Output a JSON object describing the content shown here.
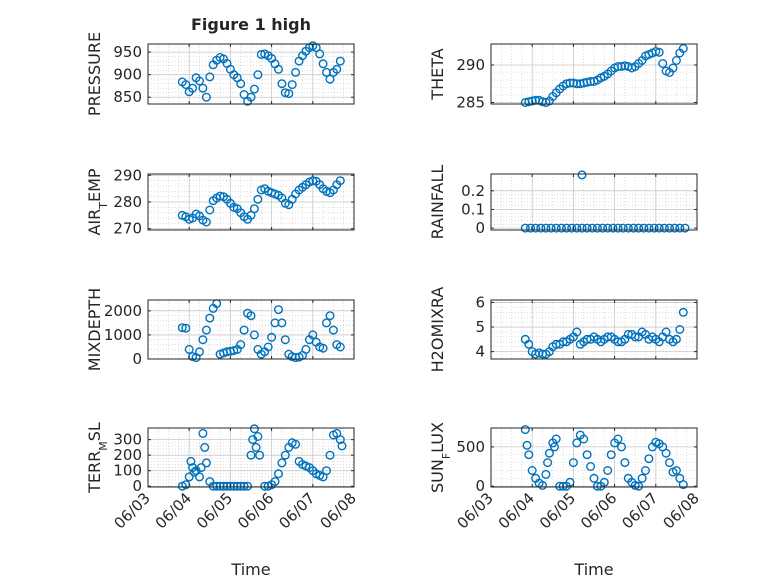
{
  "figure": {
    "title": "Figure 1 high"
  },
  "colors": {
    "marker": "#0072BD",
    "axis": "#262626",
    "grid": "#c8c8c8",
    "background": "#ffffff"
  },
  "chart_data": [
    {
      "type": "scatter",
      "ylabel": "PRESSURE",
      "xlim": [
        "06/03",
        "06/08"
      ],
      "ylim": [
        835,
        968
      ],
      "yticks": [
        850,
        900,
        950
      ],
      "xticklabels": [],
      "xticks": [
        "06/03",
        "06/04",
        "06/05",
        "06/06",
        "06/07",
        "06/08"
      ],
      "grid": true,
      "x": [
        "06/03 20:00",
        "06/03 22:00",
        "06/04 00:00",
        "06/04 02:00",
        "06/04 04:00",
        "06/04 06:00",
        "06/04 08:00",
        "06/04 10:00",
        "06/04 12:00",
        "06/04 14:00",
        "06/04 16:00",
        "06/04 18:00",
        "06/04 20:00",
        "06/04 22:00",
        "06/05 00:00",
        "06/05 02:00",
        "06/05 04:00",
        "06/05 06:00",
        "06/05 08:00",
        "06/05 10:00",
        "06/05 12:00",
        "06/05 14:00",
        "06/05 16:00",
        "06/05 18:00",
        "06/05 20:00",
        "06/05 22:00",
        "06/06 00:00",
        "06/06 02:00",
        "06/06 04:00",
        "06/06 06:00",
        "06/06 08:00",
        "06/06 10:00",
        "06/06 12:00",
        "06/06 14:00",
        "06/06 16:00",
        "06/06 18:00",
        "06/06 20:00",
        "06/06 22:00",
        "06/07 00:00",
        "06/07 02:00",
        "06/07 04:00",
        "06/07 06:00",
        "06/07 08:00",
        "06/07 10:00",
        "06/07 12:00",
        "06/07 14:00",
        "06/07 16:00"
      ],
      "y": [
        884,
        878,
        862,
        870,
        893,
        886,
        870,
        850,
        895,
        922,
        932,
        938,
        935,
        925,
        912,
        900,
        893,
        880,
        856,
        841,
        850,
        868,
        900,
        945,
        946,
        942,
        936,
        924,
        912,
        880,
        860,
        858,
        878,
        905,
        930,
        942,
        952,
        960,
        964,
        960,
        946,
        924,
        905,
        890,
        905,
        912,
        930
      ]
    },
    {
      "type": "scatter",
      "ylabel": "THETA",
      "xlim": [
        "06/03",
        "06/08"
      ],
      "ylim": [
        284.8,
        292.8
      ],
      "yticks": [
        285,
        290
      ],
      "xticklabels": [],
      "xticks": [
        "06/03",
        "06/04",
        "06/05",
        "06/06",
        "06/07",
        "06/08"
      ],
      "grid": true,
      "x": [
        "06/03 20:00",
        "06/03 22:00",
        "06/04 00:00",
        "06/04 02:00",
        "06/04 04:00",
        "06/04 06:00",
        "06/04 08:00",
        "06/04 10:00",
        "06/04 12:00",
        "06/04 14:00",
        "06/04 16:00",
        "06/04 18:00",
        "06/04 20:00",
        "06/04 22:00",
        "06/05 00:00",
        "06/05 02:00",
        "06/05 04:00",
        "06/05 06:00",
        "06/05 08:00",
        "06/05 10:00",
        "06/05 12:00",
        "06/05 14:00",
        "06/05 16:00",
        "06/05 18:00",
        "06/05 20:00",
        "06/05 22:00",
        "06/06 00:00",
        "06/06 02:00",
        "06/06 04:00",
        "06/06 06:00",
        "06/06 08:00",
        "06/06 10:00",
        "06/06 12:00",
        "06/06 14:00",
        "06/06 16:00",
        "06/06 18:00",
        "06/06 20:00",
        "06/06 22:00",
        "06/07 00:00",
        "06/07 02:00",
        "06/07 04:00",
        "06/07 06:00",
        "06/07 08:00",
        "06/07 10:00",
        "06/07 12:00",
        "06/07 14:00",
        "06/07 16:00"
      ],
      "y": [
        285.0,
        285.1,
        285.2,
        285.3,
        285.3,
        285.1,
        285.0,
        285.2,
        285.8,
        286.3,
        286.8,
        287.2,
        287.5,
        287.6,
        287.6,
        287.5,
        287.5,
        287.6,
        287.7,
        287.8,
        287.8,
        288.0,
        288.3,
        288.5,
        288.8,
        289.2,
        289.6,
        289.8,
        289.8,
        289.9,
        289.8,
        289.6,
        289.8,
        290.2,
        290.6,
        291.2,
        291.4,
        291.6,
        291.8,
        291.7,
        290.2,
        289.2,
        289.0,
        289.6,
        290.6,
        291.6,
        292.2
      ]
    },
    {
      "type": "scatter",
      "ylabel": "AIR_TEMP",
      "xlim": [
        "06/03",
        "06/08"
      ],
      "ylim": [
        269.5,
        290.5
      ],
      "yticks": [
        270,
        280,
        290
      ],
      "xticklabels": [],
      "xticks": [
        "06/03",
        "06/04",
        "06/05",
        "06/06",
        "06/07",
        "06/08"
      ],
      "grid": true,
      "x": [
        "06/03 20:00",
        "06/03 22:00",
        "06/04 00:00",
        "06/04 02:00",
        "06/04 04:00",
        "06/04 06:00",
        "06/04 08:00",
        "06/04 10:00",
        "06/04 12:00",
        "06/04 14:00",
        "06/04 16:00",
        "06/04 18:00",
        "06/04 20:00",
        "06/04 22:00",
        "06/05 00:00",
        "06/05 02:00",
        "06/05 04:00",
        "06/05 06:00",
        "06/05 08:00",
        "06/05 10:00",
        "06/05 12:00",
        "06/05 14:00",
        "06/05 16:00",
        "06/05 18:00",
        "06/05 20:00",
        "06/05 22:00",
        "06/06 00:00",
        "06/06 02:00",
        "06/06 04:00",
        "06/06 06:00",
        "06/06 08:00",
        "06/06 10:00",
        "06/06 12:00",
        "06/06 14:00",
        "06/06 16:00",
        "06/06 18:00",
        "06/06 20:00",
        "06/06 22:00",
        "06/07 00:00",
        "06/07 02:00",
        "06/07 04:00",
        "06/07 06:00",
        "06/07 08:00",
        "06/07 10:00",
        "06/07 12:00",
        "06/07 14:00",
        "06/07 16:00"
      ],
      "y": [
        275,
        274.5,
        273.5,
        274,
        275.5,
        274.8,
        273.2,
        272.5,
        277,
        280.5,
        281.5,
        282.2,
        282,
        281,
        279.5,
        278,
        277.5,
        276,
        274.5,
        273.5,
        275,
        277.5,
        281,
        284.5,
        285,
        284,
        283.5,
        283,
        282.5,
        281.5,
        279.5,
        279,
        281,
        283,
        284.5,
        285.5,
        286.5,
        287.5,
        288,
        287.8,
        286.5,
        285,
        284,
        283.5,
        284.5,
        286.5,
        288
      ]
    },
    {
      "type": "scatter",
      "ylabel": "RAINFALL",
      "xlim": [
        "06/03",
        "06/08"
      ],
      "ylim": [
        -0.01,
        0.29
      ],
      "yticks": [
        0,
        0.1,
        0.2
      ],
      "xticklabels": [],
      "xticks": [
        "06/03",
        "06/04",
        "06/05",
        "06/06",
        "06/07",
        "06/08"
      ],
      "grid": true,
      "x": [
        "06/03 20:00",
        "06/03 23:00",
        "06/04 02:00",
        "06/04 05:00",
        "06/04 08:00",
        "06/04 11:00",
        "06/04 14:00",
        "06/04 17:00",
        "06/04 20:00",
        "06/04 23:00",
        "06/05 02:00",
        "06/05 05:00",
        "06/05 08:00",
        "06/05 11:00",
        "06/05 14:00",
        "06/05 17:00",
        "06/05 20:00",
        "06/05 23:00",
        "06/06 02:00",
        "06/06 05:00",
        "06/06 08:00",
        "06/06 11:00",
        "06/06 14:00",
        "06/06 17:00",
        "06/06 20:00",
        "06/06 23:00",
        "06/07 02:00",
        "06/07 05:00",
        "06/07 08:00",
        "06/07 11:00",
        "06/07 14:00",
        "06/07 17:00",
        "06/05 05:00"
      ],
      "y": [
        0,
        0,
        0,
        0,
        0,
        0,
        0,
        0,
        0,
        0,
        0,
        0,
        0,
        0,
        0,
        0,
        0,
        0,
        0,
        0,
        0,
        0,
        0,
        0,
        0,
        0,
        0,
        0,
        0,
        0,
        0,
        0,
        0.285
      ]
    },
    {
      "type": "scatter",
      "ylabel": "MIXDEPTH",
      "xlim": [
        "06/03",
        "06/08"
      ],
      "ylim": [
        0,
        2450
      ],
      "yticks": [
        0,
        1000,
        2000
      ],
      "xticklabels": [],
      "xticks": [
        "06/03",
        "06/04",
        "06/05",
        "06/06",
        "06/07",
        "06/08"
      ],
      "grid": true,
      "x": [
        "06/03 20:00",
        "06/03 22:00",
        "06/04 00:00",
        "06/04 02:00",
        "06/04 04:00",
        "06/04 06:00",
        "06/04 08:00",
        "06/04 10:00",
        "06/04 12:00",
        "06/04 14:00",
        "06/04 16:00",
        "06/04 18:00",
        "06/04 20:00",
        "06/04 22:00",
        "06/05 00:00",
        "06/05 02:00",
        "06/05 04:00",
        "06/05 06:00",
        "06/05 08:00",
        "06/05 10:00",
        "06/05 12:00",
        "06/05 14:00",
        "06/05 16:00",
        "06/05 18:00",
        "06/05 20:00",
        "06/05 22:00",
        "06/06 00:00",
        "06/06 02:00",
        "06/06 04:00",
        "06/06 06:00",
        "06/06 08:00",
        "06/06 10:00",
        "06/06 12:00",
        "06/06 14:00",
        "06/06 16:00",
        "06/06 18:00",
        "06/06 20:00",
        "06/06 22:00",
        "06/07 00:00",
        "06/07 02:00",
        "06/07 04:00",
        "06/07 06:00",
        "06/07 08:00",
        "06/07 10:00",
        "06/07 12:00",
        "06/07 14:00",
        "06/07 16:00"
      ],
      "y": [
        1300,
        1280,
        400,
        100,
        60,
        300,
        800,
        1200,
        1700,
        2100,
        2300,
        200,
        250,
        300,
        320,
        350,
        400,
        600,
        1200,
        1900,
        1800,
        1000,
        400,
        200,
        300,
        500,
        900,
        1500,
        2050,
        1500,
        800,
        200,
        100,
        60,
        80,
        150,
        400,
        800,
        1000,
        700,
        500,
        450,
        1500,
        1800,
        1200,
        600,
        500
      ]
    },
    {
      "type": "scatter",
      "ylabel": "H2OMIXRA",
      "xlim": [
        "06/03",
        "06/08"
      ],
      "ylim": [
        3.7,
        6.1
      ],
      "yticks": [
        4,
        5,
        6
      ],
      "xticklabels": [],
      "xticks": [
        "06/03",
        "06/04",
        "06/05",
        "06/06",
        "06/07",
        "06/08"
      ],
      "grid": true,
      "x": [
        "06/03 20:00",
        "06/03 22:00",
        "06/04 00:00",
        "06/04 02:00",
        "06/04 04:00",
        "06/04 06:00",
        "06/04 08:00",
        "06/04 10:00",
        "06/04 12:00",
        "06/04 14:00",
        "06/04 16:00",
        "06/04 18:00",
        "06/04 20:00",
        "06/04 22:00",
        "06/05 00:00",
        "06/05 02:00",
        "06/05 04:00",
        "06/05 06:00",
        "06/05 08:00",
        "06/05 10:00",
        "06/05 12:00",
        "06/05 14:00",
        "06/05 16:00",
        "06/05 18:00",
        "06/05 20:00",
        "06/05 22:00",
        "06/06 00:00",
        "06/06 02:00",
        "06/06 04:00",
        "06/06 06:00",
        "06/06 08:00",
        "06/06 10:00",
        "06/06 12:00",
        "06/06 14:00",
        "06/06 16:00",
        "06/06 18:00",
        "06/06 20:00",
        "06/06 22:00",
        "06/07 00:00",
        "06/07 02:00",
        "06/07 04:00",
        "06/07 06:00",
        "06/07 08:00",
        "06/07 10:00",
        "06/07 12:00",
        "06/07 14:00",
        "06/07 16:00"
      ],
      "y": [
        4.5,
        4.3,
        4.0,
        3.9,
        3.95,
        3.9,
        3.9,
        4.0,
        4.2,
        4.3,
        4.3,
        4.4,
        4.4,
        4.5,
        4.6,
        4.8,
        4.3,
        4.4,
        4.5,
        4.5,
        4.6,
        4.5,
        4.4,
        4.5,
        4.6,
        4.6,
        4.5,
        4.4,
        4.4,
        4.5,
        4.7,
        4.7,
        4.6,
        4.6,
        4.8,
        4.7,
        4.5,
        4.6,
        4.5,
        4.4,
        4.6,
        4.8,
        4.5,
        4.4,
        4.5,
        4.9,
        5.6
      ]
    },
    {
      "type": "scatter",
      "ylabel": "TERR_MSL",
      "xlim": [
        "06/03",
        "06/08"
      ],
      "ylim": [
        -5,
        375
      ],
      "yticks": [
        0,
        100,
        200,
        300
      ],
      "xticklabels": [
        "06/03",
        "06/04",
        "06/05",
        "06/06",
        "06/07",
        "06/08"
      ],
      "xticks": [
        "06/03",
        "06/04",
        "06/05",
        "06/06",
        "06/07",
        "06/08"
      ],
      "grid": true,
      "x": [
        "06/03 20:00",
        "06/03 22:00",
        "06/04 00:00",
        "06/04 01:00",
        "06/04 02:00",
        "06/04 03:00",
        "06/04 04:00",
        "06/04 06:00",
        "06/04 07:00",
        "06/04 08:00",
        "06/04 09:00",
        "06/04 10:00",
        "06/04 12:00",
        "06/04 14:00",
        "06/04 16:00",
        "06/04 18:00",
        "06/04 20:00",
        "06/04 22:00",
        "06/05 00:00",
        "06/05 02:00",
        "06/05 04:00",
        "06/05 06:00",
        "06/05 08:00",
        "06/05 10:00",
        "06/05 12:00",
        "06/05 13:00",
        "06/05 14:00",
        "06/05 15:00",
        "06/05 16:00",
        "06/05 17:00",
        "06/05 20:00",
        "06/05 22:00",
        "06/06 00:00",
        "06/06 02:00",
        "06/06 04:00",
        "06/06 06:00",
        "06/06 08:00",
        "06/06 10:00",
        "06/06 12:00",
        "06/06 14:00",
        "06/06 16:00",
        "06/06 18:00",
        "06/06 20:00",
        "06/06 22:00",
        "06/07 00:00",
        "06/07 02:00",
        "06/07 04:00",
        "06/07 06:00",
        "06/07 08:00",
        "06/07 10:00",
        "06/07 12:00",
        "06/07 14:00",
        "06/07 16:00",
        "06/07 17:00"
      ],
      "y": [
        0,
        10,
        60,
        160,
        120,
        90,
        100,
        60,
        120,
        340,
        250,
        150,
        30,
        0,
        0,
        0,
        0,
        0,
        0,
        0,
        0,
        0,
        0,
        0,
        200,
        300,
        370,
        250,
        320,
        200,
        0,
        0,
        10,
        30,
        80,
        150,
        200,
        250,
        280,
        270,
        160,
        140,
        130,
        120,
        100,
        80,
        70,
        60,
        100,
        200,
        330,
        340,
        300,
        260
      ]
    },
    {
      "type": "scatter",
      "ylabel": "SUN_FLUX",
      "xlim": [
        "06/03",
        "06/08"
      ],
      "ylim": [
        -10,
        740
      ],
      "yticks": [
        0,
        500
      ],
      "xticklabels": [
        "06/03",
        "06/04",
        "06/05",
        "06/06",
        "06/07",
        "06/08"
      ],
      "xticks": [
        "06/03",
        "06/04",
        "06/05",
        "06/06",
        "06/07",
        "06/08"
      ],
      "grid": true,
      "x": [
        "06/03 20:00",
        "06/03 21:00",
        "06/03 22:00",
        "06/04 00:00",
        "06/04 02:00",
        "06/04 04:00",
        "06/04 06:00",
        "06/04 08:00",
        "06/04 09:00",
        "06/04 10:00",
        "06/04 12:00",
        "06/04 13:00",
        "06/04 14:00",
        "06/04 16:00",
        "06/04 18:00",
        "06/04 20:00",
        "06/04 22:00",
        "06/05 00:00",
        "06/05 02:00",
        "06/05 04:00",
        "06/05 06:00",
        "06/05 08:00",
        "06/05 10:00",
        "06/05 12:00",
        "06/05 14:00",
        "06/05 16:00",
        "06/05 18:00",
        "06/05 20:00",
        "06/05 22:00",
        "06/06 00:00",
        "06/06 02:00",
        "06/06 04:00",
        "06/06 06:00",
        "06/06 08:00",
        "06/06 10:00",
        "06/06 12:00",
        "06/06 14:00",
        "06/06 16:00",
        "06/06 18:00",
        "06/06 20:00",
        "06/06 22:00",
        "06/07 00:00",
        "06/07 02:00",
        "06/07 04:00",
        "06/07 06:00",
        "06/07 08:00",
        "06/07 10:00",
        "06/07 12:00",
        "06/07 14:00",
        "06/07 16:00"
      ],
      "y": [
        720,
        520,
        400,
        200,
        100,
        40,
        10,
        150,
        300,
        420,
        550,
        500,
        600,
        0,
        0,
        0,
        50,
        300,
        550,
        650,
        600,
        400,
        250,
        100,
        0,
        0,
        50,
        200,
        400,
        550,
        600,
        500,
        300,
        100,
        50,
        10,
        0,
        100,
        200,
        350,
        500,
        560,
        540,
        500,
        420,
        300,
        180,
        200,
        100,
        20
      ]
    }
  ],
  "xlabel_bottom": "Time"
}
